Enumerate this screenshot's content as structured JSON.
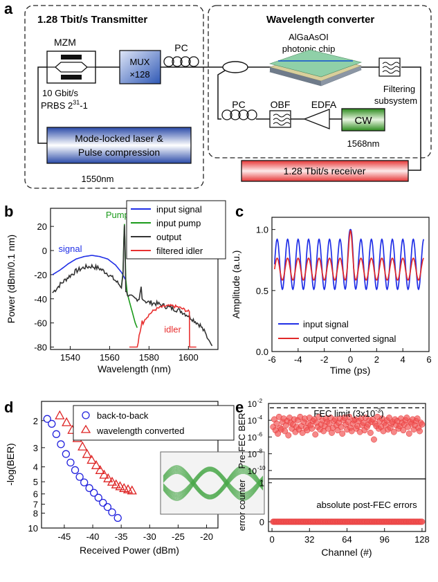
{
  "panel_a": {
    "letter": "a",
    "transmitter_title": "1.28 Tbit/s Transmitter",
    "converter_title": "Wavelength converter",
    "mzm": "MZM",
    "mux_line1": "MUX",
    "mux_line2": "×128",
    "pc_tx": "PC",
    "rate": "10 Gbit/s",
    "prbs": "PRBS 2",
    "prbs_exp": "31",
    "prbs_tail": "-1",
    "laser_line1": "Mode-locked laser &",
    "laser_line2": "Pulse compression",
    "laser_wavelength": "1550nm",
    "chip_line1": "AlGaAsOI",
    "chip_line2": "photonic chip",
    "filter_line1": "Filtering",
    "filter_line2": "subsystem",
    "pc_wc": "PC",
    "obf": "OBF",
    "edfa": "EDFA",
    "cw": "CW",
    "cw_wavelength": "1568nm",
    "receiver": "1.28 Tbit/s receiver"
  },
  "charts": {
    "b": {
      "letter": "b",
      "chart_data": {
        "type": "line",
        "xlabel": "Wavelength (nm)",
        "ylabel": "Power (dBm/0.1 nm)",
        "xlim": [
          1530,
          1615
        ],
        "ylim": [
          -82,
          35
        ],
        "xticks": [
          1540,
          1560,
          1580,
          1600
        ],
        "yticks": [
          20,
          0,
          -20,
          -40,
          -60,
          -80
        ],
        "legend": "top-right",
        "annotations": [
          "Pump",
          "signal",
          "idler"
        ],
        "series": [
          {
            "name": "input signal",
            "color": "#1f2ee6",
            "x": [
              1531,
              1535,
              1539,
              1543,
              1547,
              1551,
              1555,
              1559,
              1563,
              1566,
              1568
            ],
            "y": [
              -20,
              -16,
              -11,
              -7,
              -5,
              -4,
              -5,
              -7,
              -12,
              -18,
              -24
            ]
          },
          {
            "name": "input pump",
            "color": "#1a9a1a",
            "x": [
              1566,
              1566.8,
              1567.2,
              1567.5,
              1567.8,
              1568.2,
              1569,
              1570,
              1571,
              1572,
              1573,
              1574
            ],
            "y": [
              -30,
              -18,
              8,
              22,
              8,
              -24,
              -36,
              -42,
              -48,
              -54,
              -60,
              -64
            ]
          },
          {
            "name": "output",
            "color": "#333333",
            "x": [
              1531,
              1535,
              1539,
              1543,
              1547,
              1551,
              1555,
              1559,
              1563,
              1566,
              1566.8,
              1567.2,
              1567.5,
              1567.8,
              1568.2,
              1570,
              1573,
              1575,
              1576,
              1576.5,
              1577,
              1578,
              1580,
              1584,
              1588,
              1592,
              1596,
              1600,
              1603,
              1606,
              1608,
              1610,
              1612
            ],
            "y": [
              -35,
              -28,
              -22,
              -17,
              -14,
              -13,
              -15,
              -19,
              -25,
              -30,
              -20,
              5,
              21,
              5,
              -34,
              -38,
              -40,
              -40,
              -30,
              -40,
              -41,
              -42,
              -43,
              -44,
              -46,
              -48,
              -50,
              -54,
              -58,
              -62,
              -67,
              -73,
              -79
            ]
          },
          {
            "name": "filtered idler",
            "color": "#e83030",
            "x": [
              1570,
              1574,
              1576,
              1576.5,
              1577,
              1578,
              1580,
              1583,
              1586,
              1589,
              1592,
              1595,
              1598,
              1600.5,
              1600.6,
              1604
            ],
            "y": [
              -80,
              -80,
              -62,
              -58,
              -61,
              -57,
              -53,
              -49,
              -47,
              -46,
              -46,
              -47,
              -49,
              -51,
              -80,
              -80
            ]
          }
        ]
      }
    },
    "c": {
      "letter": "c",
      "chart_data": {
        "type": "line",
        "xlabel": "Time (ps)",
        "ylabel": "Amplitude (a.u.)",
        "xlim": [
          -6,
          6
        ],
        "ylim": [
          0.0,
          1.1
        ],
        "xticks": [
          -6,
          -4,
          -2,
          0,
          2,
          4,
          6
        ],
        "yticks": [
          "0.0",
          "0.5",
          "1.0"
        ],
        "legend": "bottom-right",
        "series": [
          {
            "name": "input signal",
            "color": "#1f2ee6",
            "period_ps": 0.8,
            "mean": 0.715,
            "amplitude": 0.205,
            "peak_at_0": 1.0,
            "t_start": -5.8,
            "t_end": 5.6
          },
          {
            "name": "output converted signal",
            "color": "#e02828",
            "period_ps": 0.8,
            "mean": 0.675,
            "amplitude": 0.09,
            "peak_at_0": 0.99,
            "t_start": -5.8,
            "t_end": 5.6
          }
        ]
      }
    },
    "d": {
      "letter": "d",
      "chart_data": {
        "type": "scatter",
        "xlabel": "Received Power (dBm)",
        "ylabel": "-log(BER)",
        "xlim": [
          -49,
          -18
        ],
        "ylim": [
          1.5,
          10
        ],
        "y_scale": "log",
        "xticks": [
          -45,
          -40,
          -35,
          -30,
          -25,
          -20
        ],
        "yticks": [
          2,
          3,
          4,
          5,
          6,
          7,
          8,
          10
        ],
        "legend": "top-right",
        "series": [
          {
            "name": "back-to-back",
            "color": "#2222dd",
            "marker": "circle",
            "x": [
              -48,
              -47.2,
              -46.4,
              -45.6,
              -44.7,
              -43.9,
              -43.1,
              -42.3,
              -41.5,
              -40.6,
              -39.8,
              -39,
              -38.2,
              -37.4,
              -36.6,
              -35.6
            ],
            "y": [
              1.95,
              2.1,
              2.45,
              2.85,
              3.3,
              3.75,
              4.2,
              4.65,
              5.05,
              5.5,
              5.9,
              6.35,
              6.85,
              7.3,
              7.9,
              8.6
            ]
          },
          {
            "name": "wavelength converted",
            "color": "#dd2222",
            "marker": "triangle",
            "x": [
              -45.8,
              -44.6,
              -43.6,
              -42.7,
              -41.8,
              -41,
              -40.2,
              -39.4,
              -38.7,
              -38,
              -37.3,
              -36.6,
              -35.9,
              -35.2,
              -34.5,
              -33.8,
              -33.1
            ],
            "y": [
              1.85,
              2.05,
              2.3,
              2.6,
              2.95,
              3.3,
              3.6,
              3.9,
              4.2,
              4.5,
              4.75,
              5,
              5.2,
              5.35,
              5.5,
              5.6,
              5.7
            ]
          }
        ],
        "inset": "eye-diagram"
      }
    },
    "e": {
      "letter": "e",
      "chart_data": {
        "type": "scatter",
        "xlabel": "Channel (#)",
        "xlim": [
          -3,
          131
        ],
        "xticks": [
          0,
          32,
          64,
          96,
          128
        ],
        "top": {
          "ylabel": "Pre-FEC BER",
          "y_scale": "log",
          "ylim": [
            1e-11,
            0.01
          ],
          "yticks": [
            "10",
            "10",
            "10",
            "10",
            "10"
          ],
          "ytick_exps": [
            "-2",
            "-4",
            "-6",
            "-8",
            "-10"
          ],
          "fec_label": "FEC limit (3x10",
          "fec_exp": "-3",
          "fec_tail": ")",
          "fec_value": 0.003,
          "log10_ber": [
            -4.8,
            -3.9,
            -5.2,
            -4.4,
            -5.6,
            -3.6,
            -4.9,
            -5.1,
            -4.2,
            -3.8,
            -5.3,
            -4.6,
            -4.1,
            -5.8,
            -3.7,
            -4.3,
            -5.0,
            -4.5,
            -3.9,
            -5.4,
            -4.8,
            -4.0,
            -5.1,
            -3.6,
            -4.7,
            -5.5,
            -4.2,
            -3.8,
            -4.9,
            -5.2,
            -4.4,
            -3.7,
            -4.6,
            -5.0,
            -4.1,
            -3.9,
            -5.7,
            -4.3,
            -4.8,
            -3.6,
            -5.1,
            -4.5,
            -4.0,
            -5.3,
            -4.7,
            -3.8,
            -4.2,
            -5.0,
            -4.4,
            -3.7,
            -5.5,
            -4.9,
            -4.1,
            -3.9,
            -4.6,
            -5.2,
            -4.3,
            -3.8,
            -4.8,
            -5.6,
            -4.0,
            -3.7,
            -4.5,
            -5.1,
            -4.2,
            -3.6,
            -4.9,
            -5.3,
            -4.4,
            -4.0,
            -3.9,
            -5.0,
            -4.7,
            -4.1,
            -5.4,
            -3.8,
            -4.6,
            -4.3,
            -5.2,
            -3.7,
            -4.8,
            -4.5,
            -4.0,
            -5.5,
            -4.2,
            -3.9,
            -6.3,
            -4.4,
            -4.7,
            -3.6,
            -5.0,
            -4.1,
            -4.8,
            -3.8,
            -5.3,
            -4.3,
            -4.6,
            -4.0,
            -5.1,
            -3.7,
            -4.9,
            -4.4,
            -4.2,
            -5.4,
            -3.9,
            -4.6,
            -4.1,
            -5.0,
            -4.7,
            -3.8,
            -4.3,
            -5.2,
            -4.5,
            -4.0,
            -3.7,
            -4.8,
            -5.6,
            -4.2,
            -4.4,
            -3.9,
            -5.1,
            -4.6,
            -4.1,
            -3.8,
            -4.9,
            -5.3,
            -4.3,
            -4.5
          ]
        },
        "bottom": {
          "ylabel": "error counter",
          "ylim": [
            -0.25,
            1.1
          ],
          "yticks": [
            "0",
            "1"
          ],
          "annotation": "absolute post-FEC errors",
          "value": 0
        }
      }
    }
  }
}
